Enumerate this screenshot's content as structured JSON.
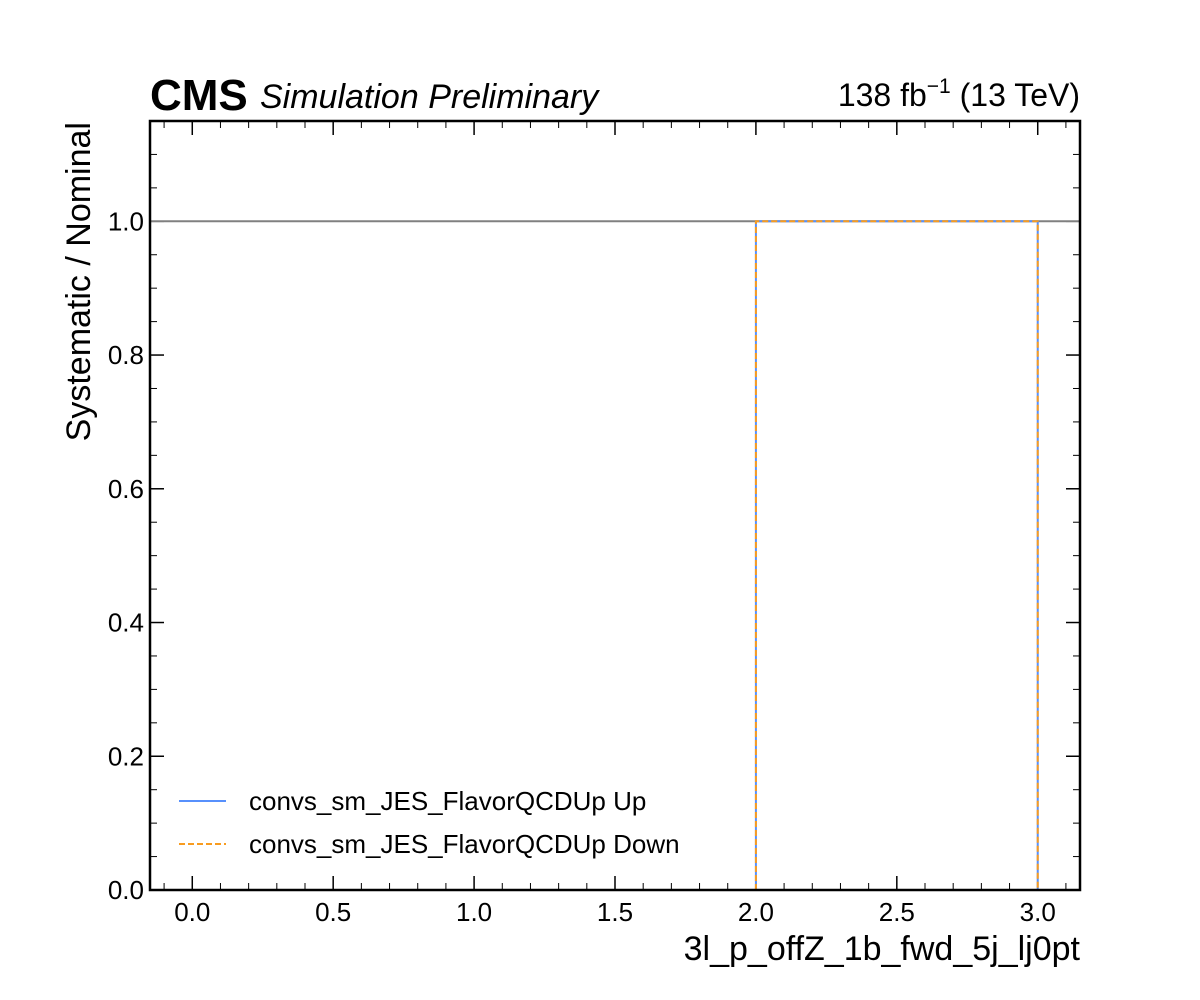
{
  "header": {
    "experiment": "CMS",
    "status": "Simulation Preliminary",
    "lumi_value": "138 fb",
    "lumi_exp": "−1",
    "energy": " (13 TeV)"
  },
  "chart_data": {
    "type": "line",
    "xlabel": "3l_p_offZ_1b_fwd_5j_lj0pt",
    "ylabel": "Systematic / Nominal",
    "xlim": [
      -0.15,
      3.15
    ],
    "ylim": [
      0.0,
      1.15
    ],
    "x_ticks": [
      0.0,
      0.5,
      1.0,
      1.5,
      2.0,
      2.5,
      3.0
    ],
    "y_ticks": [
      0.0,
      0.2,
      0.4,
      0.6,
      0.8,
      1.0
    ],
    "x_tick_labels": [
      "0.0",
      "0.5",
      "1.0",
      "1.5",
      "2.0",
      "2.5",
      "3.0"
    ],
    "y_tick_labels": [
      "0.0",
      "0.2",
      "0.4",
      "0.6",
      "0.8",
      "1.0"
    ],
    "reference_line": {
      "y": 1.0,
      "color": "#808080"
    },
    "series": [
      {
        "name": "convs_sm_JES_FlavorQCDUp Up",
        "style": "solid",
        "color": "#5790fc",
        "bin_edges": [
          2.0,
          3.0
        ],
        "values": [
          1.0
        ]
      },
      {
        "name": "convs_sm_JES_FlavorQCDUp Down",
        "style": "dashed",
        "color": "#f89c20",
        "bin_edges": [
          2.0,
          3.0
        ],
        "values": [
          1.0
        ]
      }
    ],
    "legend_position": "lower-left"
  }
}
